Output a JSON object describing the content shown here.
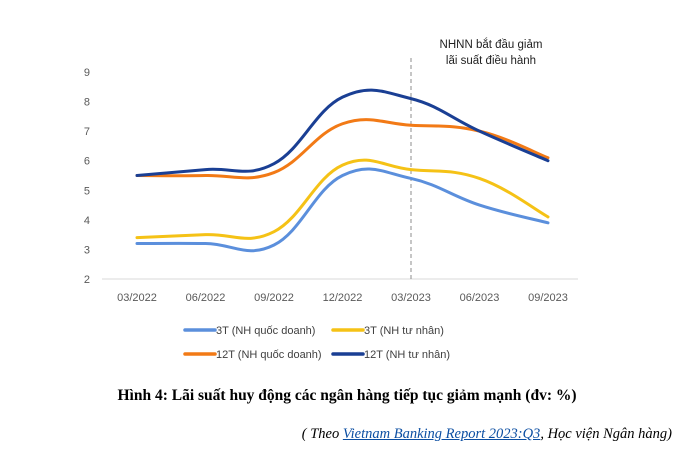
{
  "chart_data": {
    "type": "line",
    "x": [
      "03/2022",
      "06/2022",
      "09/2022",
      "12/2022",
      "03/2023",
      "06/2023",
      "09/2023"
    ],
    "ylim": [
      2,
      9
    ],
    "yticks": [
      "2",
      "3",
      "4",
      "5",
      "6",
      "7",
      "8",
      "9"
    ],
    "grid": false,
    "legend_position": "bottom",
    "annotation": {
      "x": "03/2023",
      "line1": "NHNN bắt đầu giảm",
      "line2": "lãi suất điều hành"
    },
    "series": [
      {
        "name": "3T (NH quốc doanh)",
        "color": "#5b8fdc",
        "values": [
          3.2,
          3.2,
          3.15,
          5.5,
          5.4,
          4.5,
          3.9
        ]
      },
      {
        "name": "3T (NH tư nhân)",
        "color": "#f5c216",
        "values": [
          3.4,
          3.5,
          3.6,
          5.85,
          5.7,
          5.4,
          4.1
        ]
      },
      {
        "name": "12T (NH quốc doanh)",
        "color": "#f27a16",
        "values": [
          5.5,
          5.5,
          5.6,
          7.25,
          7.2,
          7.0,
          6.1
        ]
      },
      {
        "name": "12T (NH tư nhân)",
        "color": "#1a3f94",
        "values": [
          5.5,
          5.7,
          5.9,
          8.15,
          8.1,
          7.0,
          6.0
        ]
      }
    ]
  },
  "caption": "Hình 4: Lãi suất huy động các ngân hàng tiếp tục giảm mạnh (đv: %)",
  "source": {
    "prefix": "( Theo ",
    "link": "Vietnam Banking Report 2023:Q3",
    "suffix": ", Học viện Ngân hàng)"
  }
}
